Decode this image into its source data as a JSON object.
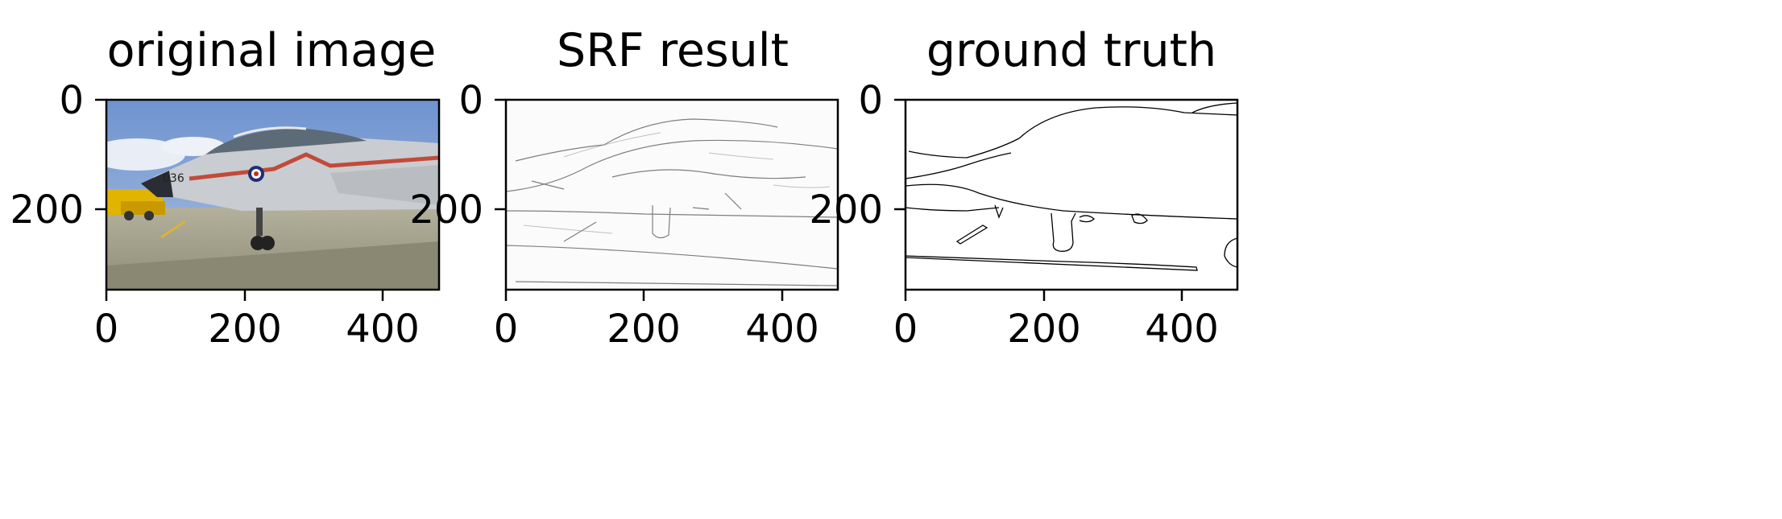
{
  "chart_data": [
    {
      "type": "image",
      "title": "original image",
      "content": "photo of a grey and white fighter jet with red stripe, number 036, roundel, parked on tarmac with yellow vehicle behind and blue sky",
      "xlim": [
        0,
        481
      ],
      "ylim": [
        321,
        0
      ],
      "xticks": [
        0,
        200,
        400
      ],
      "yticks": [
        0,
        200
      ]
    },
    {
      "type": "image",
      "title": "SRF result",
      "content": "grayscale soft edge map of the jet scene",
      "xlim": [
        0,
        481
      ],
      "ylim": [
        321,
        0
      ],
      "xticks": [
        0,
        200,
        400
      ],
      "yticks": [
        0,
        200
      ]
    },
    {
      "type": "image",
      "title": "ground truth",
      "content": "binary black contour edges on white background",
      "xlim": [
        0,
        481
      ],
      "ylim": [
        321,
        0
      ],
      "xticks": [
        0,
        200,
        400
      ],
      "yticks": [
        0,
        200
      ]
    }
  ],
  "colors": {
    "sky": "#7f9fcf",
    "tarmac": "#a7a58f",
    "fuselage": "#c9ccd0",
    "stripe": "#c24a3a",
    "vehicle": "#e3b300"
  }
}
